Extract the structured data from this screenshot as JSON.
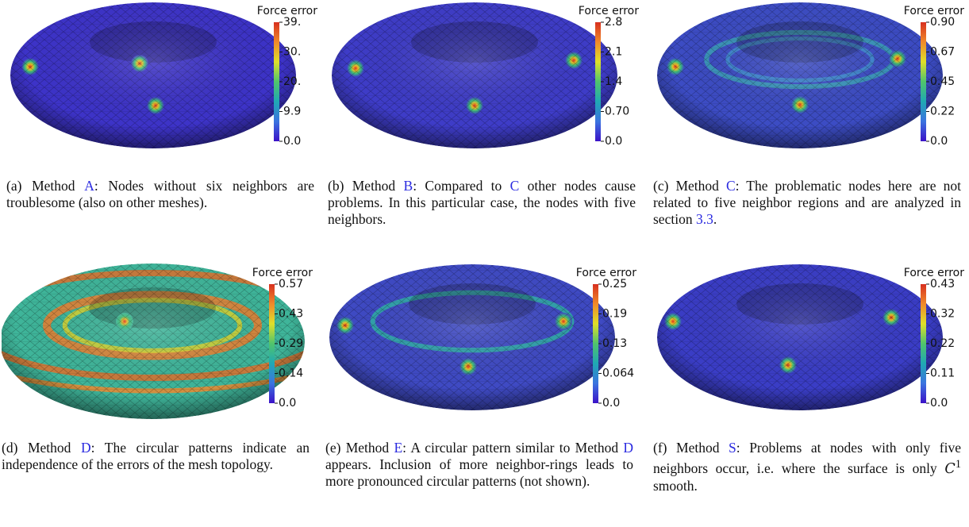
{
  "panels": [
    {
      "colorbar": {
        "title": "Force error",
        "ticks": [
          "39.",
          "30.",
          "20.",
          "9.9",
          "0.0"
        ]
      },
      "caption": [
        {
          "text": "(a) Method "
        },
        {
          "link": "A"
        },
        {
          "text": ": Nodes without six neighbors are troublesome (also on other meshes)."
        }
      ]
    },
    {
      "colorbar": {
        "title": "Force error",
        "ticks": [
          "2.8",
          "2.1",
          "1.4",
          "0.70",
          "0.0"
        ]
      },
      "caption": [
        {
          "text": "(b) Method "
        },
        {
          "link": "B"
        },
        {
          "text": ": Compared to "
        },
        {
          "link": "C"
        },
        {
          "text": " other nodes cause problems. In this particular case, the nodes with five neighbors."
        }
      ]
    },
    {
      "colorbar": {
        "title": "Force error",
        "ticks": [
          "0.90",
          "0.67",
          "0.45",
          "0.22",
          "0.0"
        ]
      },
      "caption": [
        {
          "text": "(c) Method "
        },
        {
          "link": "C"
        },
        {
          "text": ": The problematic nodes here are not related to five neighbor regions and are analyzed in section "
        },
        {
          "link": "3.3"
        },
        {
          "text": "."
        }
      ]
    },
    {
      "colorbar": {
        "title": "Force error",
        "ticks": [
          "0.57",
          "0.43",
          "0.29",
          "0.14",
          "0.0"
        ]
      },
      "caption": [
        {
          "text": "(d) Method "
        },
        {
          "link": "D"
        },
        {
          "text": ": The circular patterns indicate an independence of the errors of the mesh topology."
        }
      ]
    },
    {
      "colorbar": {
        "title": "Force error",
        "ticks": [
          "0.25",
          "0.19",
          "0.13",
          "0.064",
          "0.0"
        ]
      },
      "caption": [
        {
          "text": "(e) Method "
        },
        {
          "link": "E"
        },
        {
          "text": ": A circular pattern similar to Method "
        },
        {
          "link": "D"
        },
        {
          "text": " appears. Inclusion of more neighbor-rings leads to more pronounced circular patterns (not shown)."
        }
      ]
    },
    {
      "colorbar": {
        "title": "Force error",
        "ticks": [
          "0.43",
          "0.32",
          "0.22",
          "0.11",
          "0.0"
        ]
      },
      "caption": [
        {
          "text": "(f) Method "
        },
        {
          "link": "S"
        },
        {
          "text": ": Problems at nodes with only five neighbors occur, i.e. where the surface is only "
        },
        {
          "math": "C"
        },
        {
          "sup": "1"
        },
        {
          "text": " smooth."
        }
      ]
    }
  ]
}
